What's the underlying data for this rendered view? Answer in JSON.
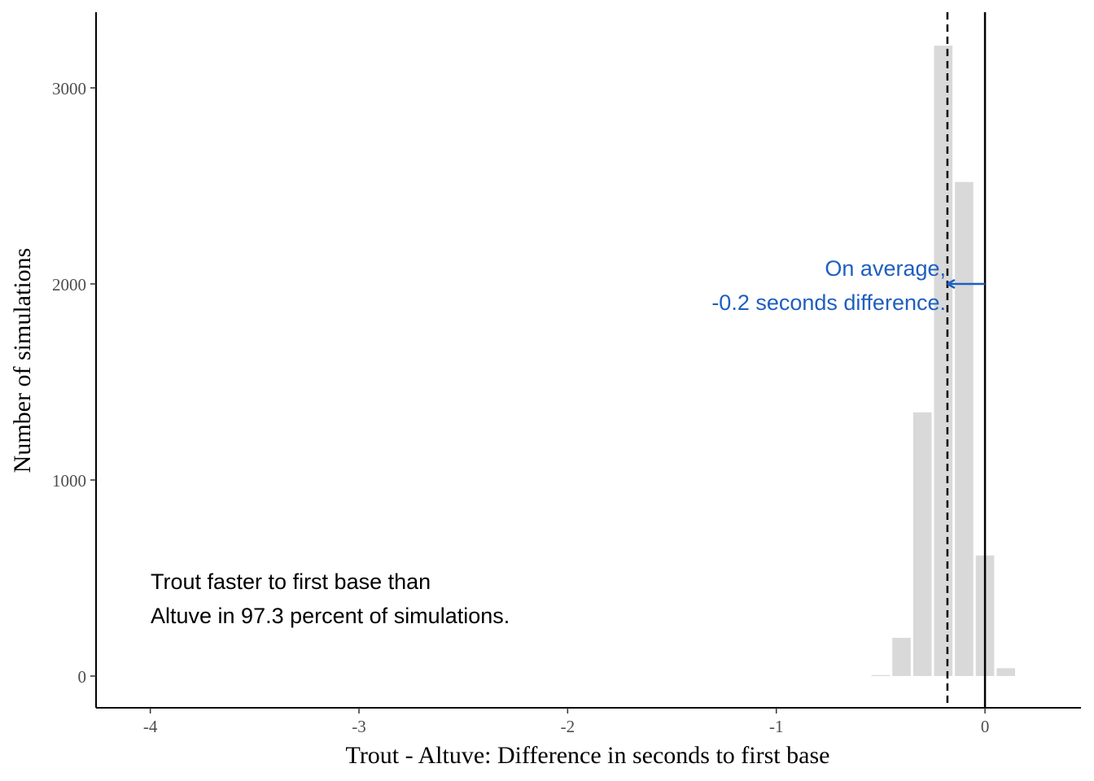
{
  "chart_data": {
    "type": "bar",
    "xlabel": "Trout - Altuve: Difference in seconds to first base",
    "ylabel": "Number of simulations",
    "xlim": [
      -4.26,
      0.46
    ],
    "ylim": [
      0,
      3360
    ],
    "x_ticks": [
      -4,
      -3,
      -2,
      -1,
      0
    ],
    "x_tick_labels": [
      "-4",
      "-3",
      "-2",
      "-1",
      "0"
    ],
    "y_ticks": [
      0,
      1000,
      2000,
      3000
    ],
    "y_tick_labels": [
      "0",
      "1000",
      "2000",
      "3000"
    ],
    "grid": false,
    "bin_width": 0.1,
    "bars": [
      {
        "x": -0.5,
        "count": 5
      },
      {
        "x": -0.4,
        "count": 195
      },
      {
        "x": -0.3,
        "count": 1345
      },
      {
        "x": -0.2,
        "count": 3215
      },
      {
        "x": -0.1,
        "count": 2520
      },
      {
        "x": 0.0,
        "count": 615
      },
      {
        "x": 0.1,
        "count": 40
      }
    ],
    "bar_color": "#d9d9d9",
    "reference_lines": [
      {
        "x": -0.18,
        "style": "dashed",
        "color": "#000000"
      },
      {
        "x": 0,
        "style": "solid",
        "color": "#000000"
      }
    ],
    "annotations": [
      {
        "lines": [
          "Trout faster to first base than",
          "Altuve in 97.3 percent of simulations."
        ],
        "color": "#000000"
      },
      {
        "lines": [
          "On average,",
          "-0.2 seconds difference."
        ],
        "color": "#1f5fbf"
      }
    ],
    "arrow": {
      "from_x": 0,
      "to_x": -0.18,
      "y": 2000,
      "color": "#1f5fbf"
    }
  }
}
